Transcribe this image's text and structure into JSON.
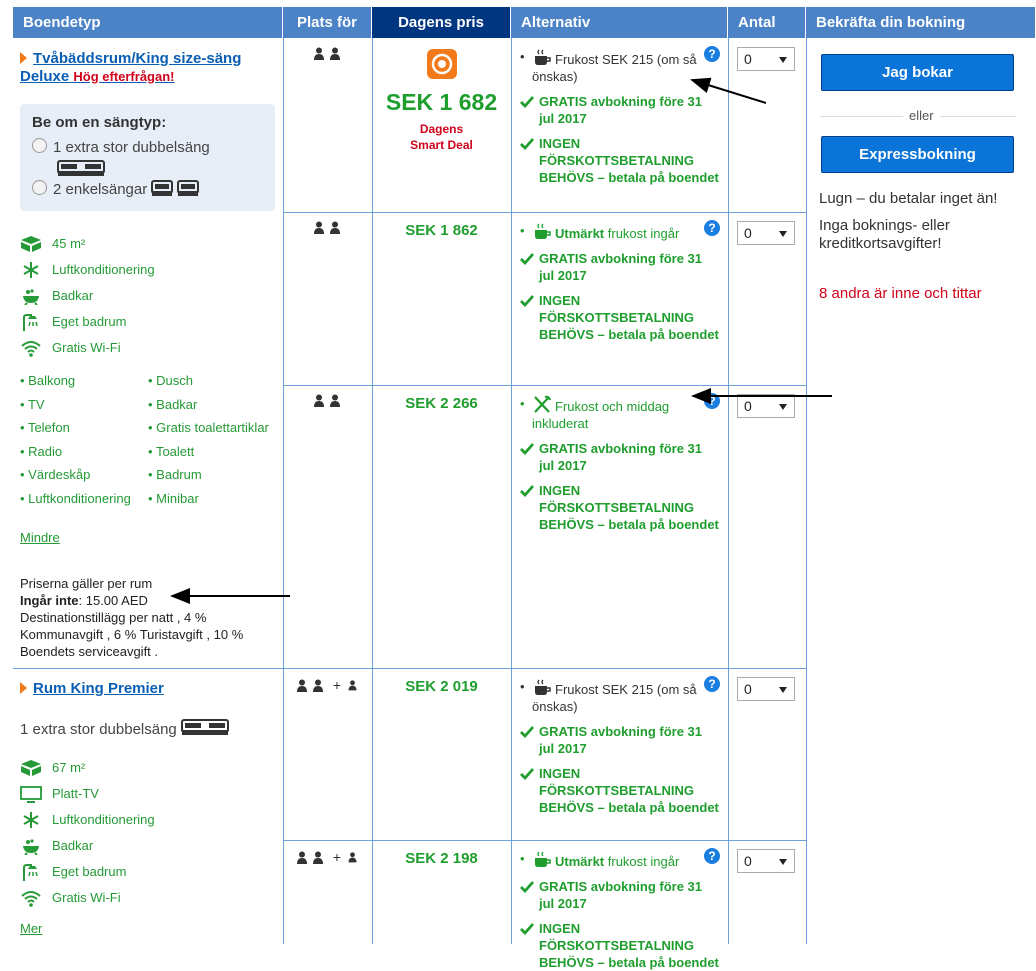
{
  "header": {
    "columns": [
      "Boendetyp",
      "Plats för",
      "Dagens pris",
      "Alternativ",
      "Antal",
      "Bekräfta din bokning"
    ]
  },
  "rooms": [
    {
      "name": "Tvåbäddsrum/King size-säng Deluxe",
      "badge": "Hög efterfrågan!",
      "bed_choice": {
        "title": "Be om en sängtyp:",
        "options": [
          {
            "label": "1 extra stor dubbelsäng",
            "beds": "double"
          },
          {
            "label": "2 enkelsängar",
            "beds": "twin"
          }
        ]
      },
      "facilities": [
        {
          "icon": "area",
          "label": "45 m²"
        },
        {
          "icon": "snow",
          "label": "Luftkonditionering"
        },
        {
          "icon": "bath",
          "label": "Badkar"
        },
        {
          "icon": "shower",
          "label": "Eget badrum"
        },
        {
          "icon": "wifi",
          "label": "Gratis Wi-Fi"
        }
      ],
      "amenities": [
        [
          "Balkong",
          "TV",
          "Telefon",
          "Radio",
          "Värdeskåp",
          "Luftkonditionering"
        ],
        [
          "Dusch",
          "Badkar",
          "Gratis toalettartiklar",
          "Toalett",
          "Badrum",
          "Minibar"
        ]
      ],
      "toggle": "Mindre",
      "price_note": {
        "line": "Priserna gäller per rum",
        "excluded_label": "Ingår inte",
        "excluded_text": ": 15.00 AED",
        "details": "Destinationstillägg per natt , 4 % Kommunavgift , 6 % Turistavgift , 10 % Boendets serviceavgift ."
      },
      "offers": [
        {
          "guests": {
            "adults": 2
          },
          "price": "SEK 1 682",
          "deal": [
            "Dagens",
            "Smart Deal"
          ],
          "meal": {
            "icon": "cup",
            "text": "Frukost SEK 215 (om så önskas)",
            "included": false
          },
          "cancel": "GRATIS avbokning före 31 jul 2017",
          "prepay": "INGEN FÖRSKOTTSBETALNING BEHÖVS – betala på boendet",
          "quantity": 0
        },
        {
          "guests": {
            "adults": 2
          },
          "price": "SEK 1 862",
          "meal": {
            "icon": "cup",
            "strong": "Utmärkt",
            "text": "frukost ingår",
            "included": true
          },
          "cancel": "GRATIS avbokning före 31 jul 2017",
          "prepay": "INGEN FÖRSKOTTSBETALNING BEHÖVS – betala på boendet",
          "quantity": 0
        },
        {
          "guests": {
            "adults": 2
          },
          "price": "SEK 2 266",
          "meal": {
            "icon": "cutlery",
            "text": "Frukost och middag inkluderat",
            "included": true
          },
          "cancel": "GRATIS avbokning före 31 jul 2017",
          "prepay": "INGEN FÖRSKOTTSBETALNING BEHÖVS – betala på boendet",
          "quantity": 0
        }
      ]
    },
    {
      "name": "Rum King Premier",
      "bed": {
        "label": "1 extra stor dubbelsäng",
        "beds": "double"
      },
      "facilities": [
        {
          "icon": "area",
          "label": "67 m²"
        },
        {
          "icon": "tv",
          "label": "Platt-TV"
        },
        {
          "icon": "snow",
          "label": "Luftkonditionering"
        },
        {
          "icon": "bath",
          "label": "Badkar"
        },
        {
          "icon": "shower",
          "label": "Eget badrum"
        },
        {
          "icon": "wifi",
          "label": "Gratis Wi-Fi"
        }
      ],
      "toggle": "Mer",
      "offers": [
        {
          "guests": {
            "adults": 2,
            "plus": "+",
            "children": 1
          },
          "price": "SEK 2 019",
          "meal": {
            "icon": "cup",
            "text": "Frukost SEK 215 (om så önskas)",
            "included": false
          },
          "cancel": "GRATIS avbokning före 31 jul 2017",
          "prepay": "INGEN FÖRSKOTTSBETALNING BEHÖVS – betala på boendet",
          "quantity": 0
        },
        {
          "guests": {
            "adults": 2,
            "plus": "+",
            "children": 1
          },
          "price": "SEK 2 198",
          "meal": {
            "icon": "cup",
            "strong": "Utmärkt",
            "text": "frukost ingår",
            "included": true
          },
          "cancel": "GRATIS avbokning före 31 jul 2017",
          "prepay": "INGEN FÖRSKOTTSBETALNING BEHÖVS – betala på boendet",
          "quantity": 0
        }
      ]
    }
  ],
  "booking": {
    "book_button": "Jag bokar",
    "separator": "eller",
    "express_button": "Expressbokning",
    "reassurance": "Lugn – du betalar inget än!",
    "fees": "Inga boknings- eller kreditkortsavgifter!",
    "viewers": "8 andra är inne och tittar"
  }
}
